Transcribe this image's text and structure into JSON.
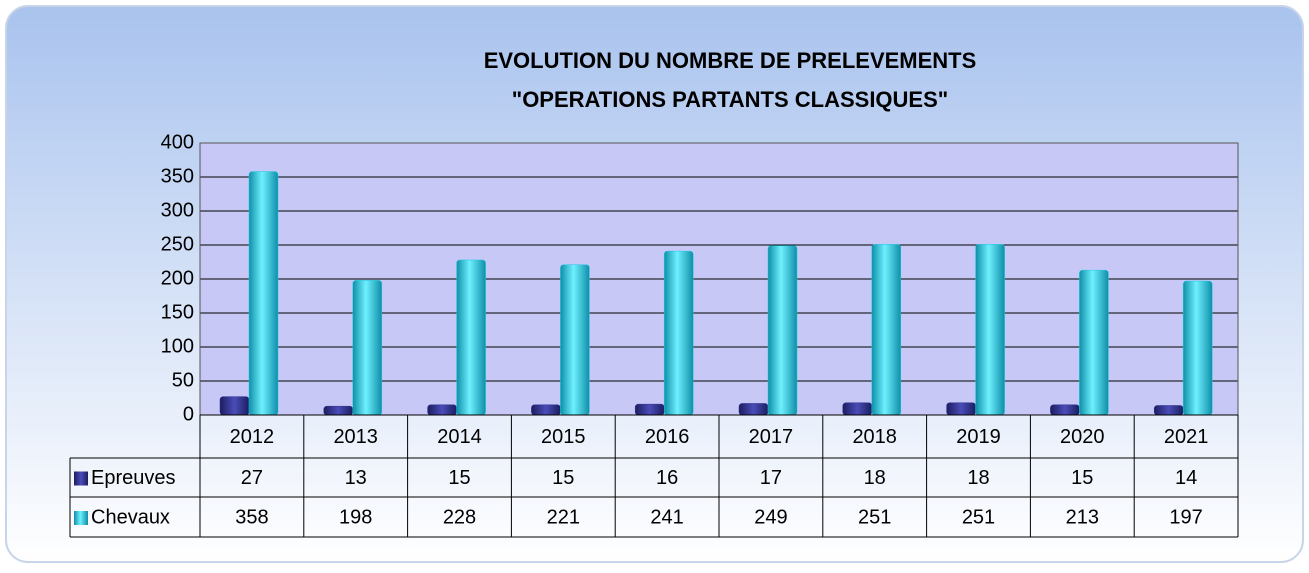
{
  "chart_data": {
    "type": "bar",
    "title": "EVOLUTION DU NOMBRE DE PRELEVEMENTS",
    "subtitle": "\"OPERATIONS PARTANTS CLASSIQUES\"",
    "categories": [
      "2012",
      "2013",
      "2014",
      "2015",
      "2016",
      "2017",
      "2018",
      "2019",
      "2020",
      "2021"
    ],
    "series": [
      {
        "name": "Epreuves",
        "color": "#2e2f8c",
        "values": [
          27,
          13,
          15,
          15,
          16,
          17,
          18,
          18,
          15,
          14
        ]
      },
      {
        "name": "Chevaux",
        "color": "#1ec8e2",
        "values": [
          358,
          198,
          228,
          221,
          241,
          249,
          251,
          251,
          213,
          197
        ]
      }
    ],
    "ylim": [
      0,
      400
    ],
    "yticks": [
      0,
      50,
      100,
      150,
      200,
      250,
      300,
      350,
      400
    ],
    "grid": true,
    "data_table": true
  }
}
